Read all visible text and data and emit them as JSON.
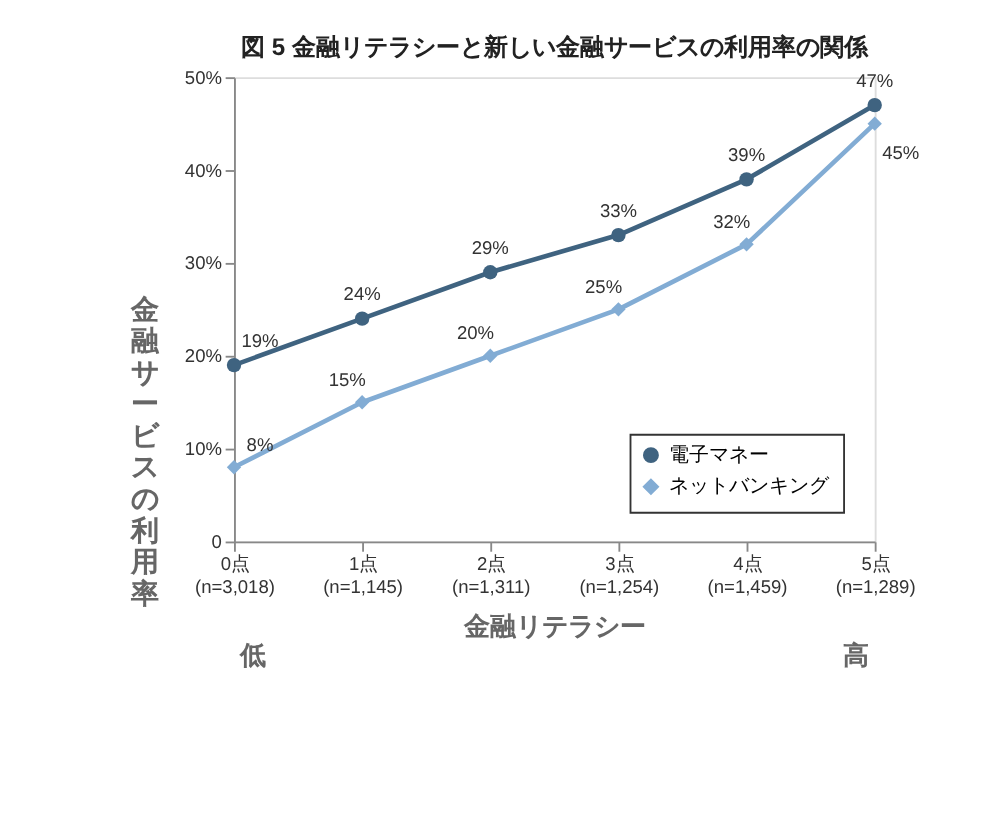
{
  "chart_data": {
    "type": "line",
    "title": "図 5  金融リテラシーと新しい金融サービスの利用率の関係",
    "categories": [
      "0点\n(n=3,018)",
      "1点\n(n=1,145)",
      "2点\n(n=1,311)",
      "3点\n(n=1,254)",
      "4点\n(n=1,459)",
      "5点\n(n=1,289)"
    ],
    "series": [
      {
        "name": "電子マネー",
        "color": "#3f6380",
        "marker": "circle",
        "values": [
          19,
          24,
          29,
          33,
          39,
          47
        ],
        "value_labels": [
          "19%",
          "24%",
          "29%",
          "33%",
          "39%",
          "47%"
        ]
      },
      {
        "name": "ネットバンキング",
        "color": "#82acd4",
        "marker": "diamond",
        "values": [
          8,
          15,
          20,
          25,
          32,
          45
        ],
        "value_labels": [
          "8%",
          "15%",
          "20%",
          "25%",
          "32%",
          "45%"
        ]
      }
    ],
    "ylabel": "金融サービスの利用率",
    "xlabel": "金融リテラシー",
    "annotations": [
      "低",
      "高"
    ],
    "ylim": [
      0,
      50
    ],
    "yticks": [
      0,
      {
        "value": 10,
        "label": "10%"
      },
      {
        "value": 20,
        "label": "20%"
      },
      {
        "value": 30,
        "label": "30%"
      },
      {
        "value": 40,
        "label": "40%"
      },
      {
        "value": 50,
        "label": "50%"
      }
    ],
    "grid": false,
    "legend": "bottom right",
    "line_style": "solid"
  }
}
